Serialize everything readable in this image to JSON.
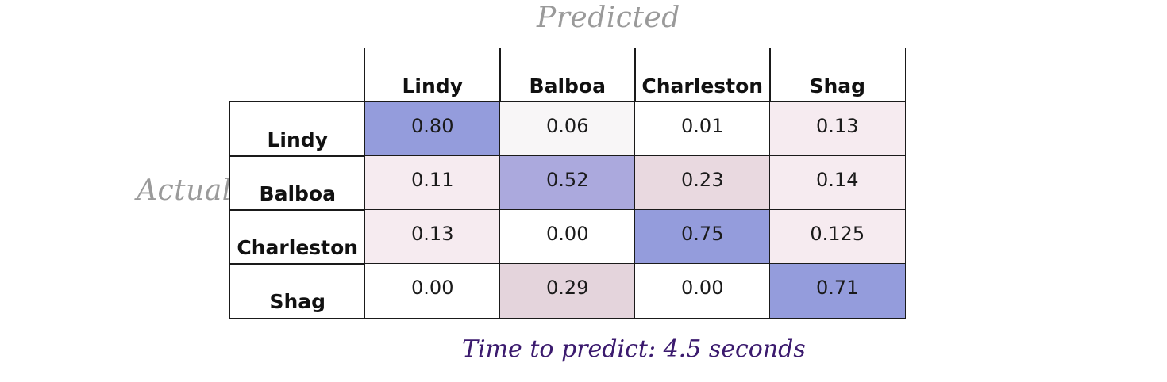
{
  "chart_data": {
    "type": "heatmap",
    "title": "",
    "xlabel": "Predicted",
    "ylabel": "Actual",
    "x_categories": [
      "Lindy",
      "Balboa",
      "Charleston",
      "Shag"
    ],
    "y_categories": [
      "Lindy",
      "Balboa",
      "Charleston",
      "Shag"
    ],
    "cell_labels": [
      [
        "0.80",
        "0.06",
        "0.01",
        "0.13"
      ],
      [
        "0.11",
        "0.52",
        "0.23",
        "0.14"
      ],
      [
        "0.13",
        "0.00",
        "0.75",
        "0.125"
      ],
      [
        "0.00",
        "0.29",
        "0.00",
        "0.71"
      ]
    ],
    "values": [
      [
        0.8,
        0.06,
        0.01,
        0.13
      ],
      [
        0.11,
        0.52,
        0.23,
        0.14
      ],
      [
        0.13,
        0.0,
        0.75,
        0.125
      ],
      [
        0.0,
        0.29,
        0.0,
        0.71
      ]
    ],
    "cell_colors": [
      [
        "#949cdc",
        "#f8f6f7",
        "#ffffff",
        "#f6ebf0"
      ],
      [
        "#f6ebf0",
        "#aba9dd",
        "#e9d9e0",
        "#f6ebf0"
      ],
      [
        "#f6ebf0",
        "#ffffff",
        "#949cdc",
        "#f6ebf0"
      ],
      [
        "#ffffff",
        "#e4d4dc",
        "#ffffff",
        "#949cdc"
      ]
    ]
  },
  "caption": "Time to predict: 4.5 seconds",
  "colors": {
    "axis_label": "#9a9a9a",
    "caption": "#3b1a6e",
    "grid": "#1a1a1a"
  }
}
